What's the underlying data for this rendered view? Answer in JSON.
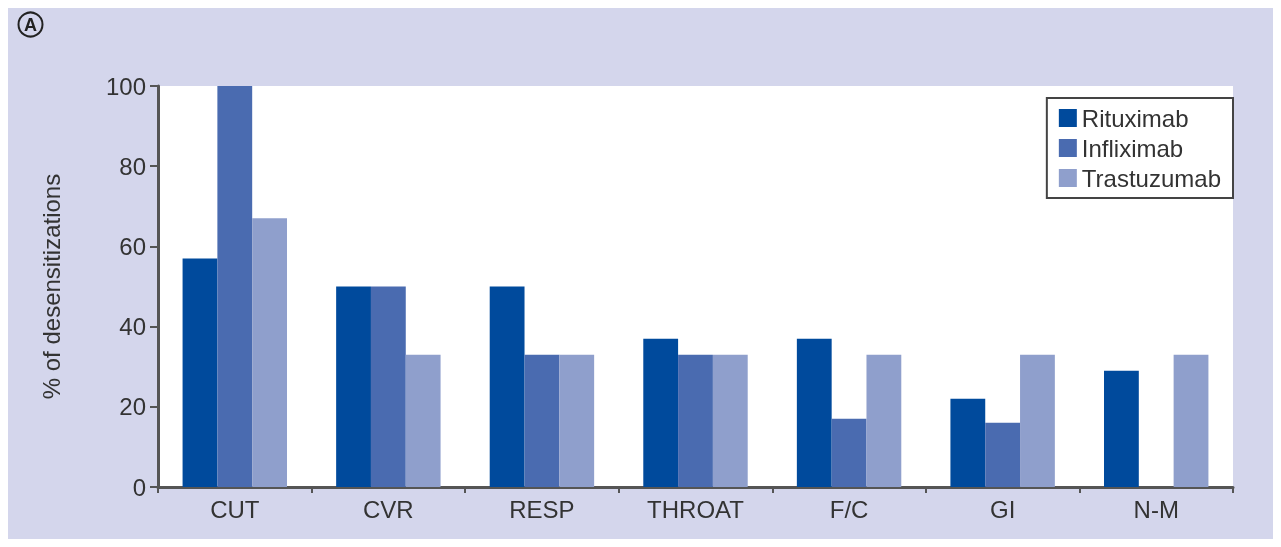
{
  "chart_data": {
    "type": "bar",
    "annotations": [
      "A"
    ],
    "ylabel": "% of desensitizations",
    "categories": [
      "CUT",
      "CVR",
      "RESP",
      "THROAT",
      "F/C",
      "GI",
      "N-M"
    ],
    "series": [
      {
        "name": "Rituximab",
        "color": "#004a9c",
        "values": [
          57,
          50,
          50,
          37,
          37,
          22,
          29
        ]
      },
      {
        "name": "Infliximab",
        "color": "#4a6bb0",
        "values": [
          100,
          50,
          33,
          33,
          17,
          16,
          0
        ]
      },
      {
        "name": "Trastuzumab",
        "color": "#8f9fcc",
        "values": [
          67,
          33,
          33,
          33,
          33,
          33,
          33
        ]
      }
    ],
    "ylim": [
      0,
      100
    ],
    "yticks": [
      0,
      20,
      40,
      60,
      80,
      100
    ],
    "legend": "top right",
    "grid": false
  }
}
